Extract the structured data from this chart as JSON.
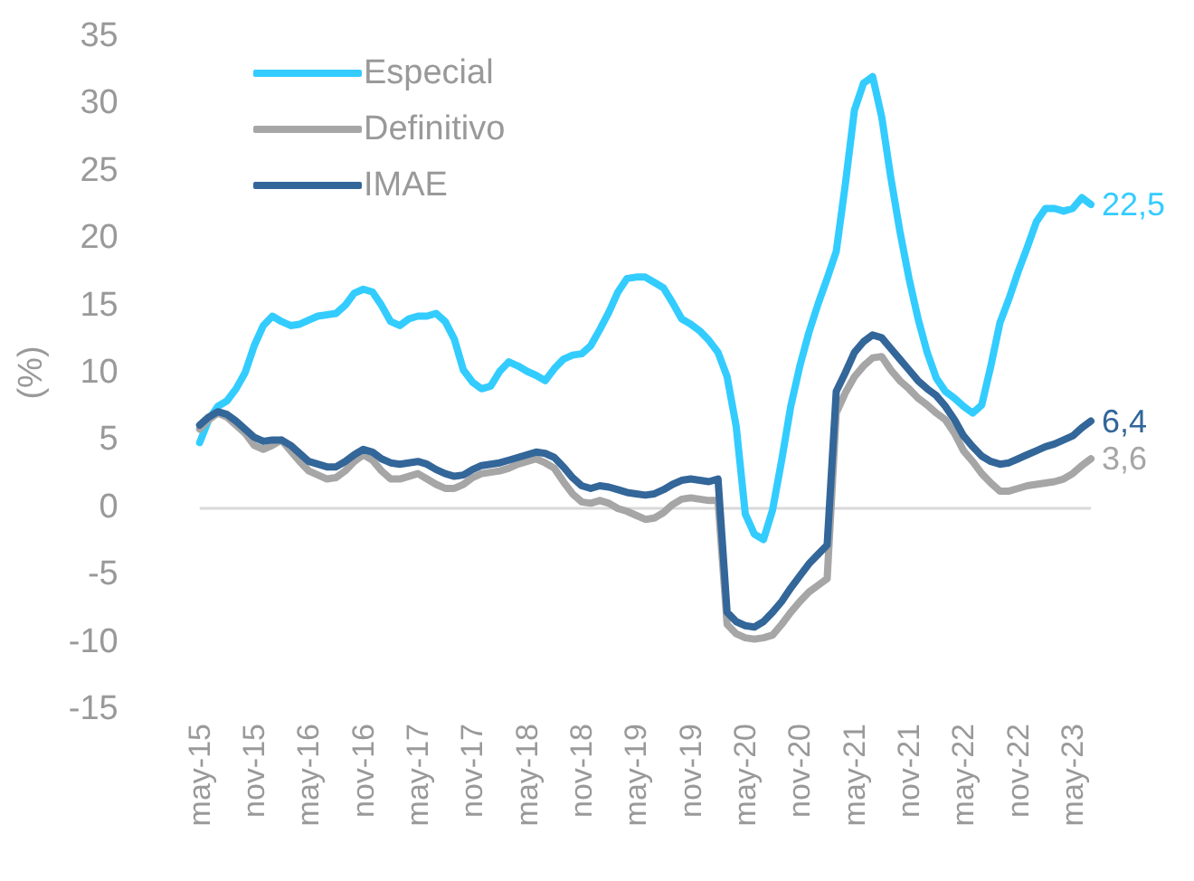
{
  "chart_data": {
    "type": "line",
    "ylabel": "(%)",
    "categories": [
      "may-15",
      null,
      null,
      null,
      null,
      null,
      "nov-15",
      null,
      null,
      null,
      null,
      null,
      "may-16",
      null,
      null,
      null,
      null,
      null,
      "nov-16",
      null,
      null,
      null,
      null,
      null,
      "may-17",
      null,
      null,
      null,
      null,
      null,
      "nov-17",
      null,
      null,
      null,
      null,
      null,
      "may-18",
      null,
      null,
      null,
      null,
      null,
      "nov-18",
      null,
      null,
      null,
      null,
      null,
      "may-19",
      null,
      null,
      null,
      null,
      null,
      "nov-19",
      null,
      null,
      null,
      null,
      null,
      "may-20",
      null,
      null,
      null,
      null,
      null,
      "nov-20",
      null,
      null,
      null,
      null,
      null,
      "may-21",
      null,
      null,
      null,
      null,
      null,
      "nov-21",
      null,
      null,
      null,
      null,
      null,
      "may-22",
      null,
      null,
      null,
      null,
      null,
      "nov-22",
      null,
      null,
      null,
      null,
      null,
      "may-23",
      null,
      null
    ],
    "series": [
      {
        "name": "Especial",
        "color": "#33ccff",
        "values": [
          4.8,
          6.5,
          7.5,
          7.9,
          8.8,
          10,
          12,
          13.5,
          14.2,
          13.8,
          13.5,
          13.6,
          13.9,
          14.2,
          14.3,
          14.4,
          15,
          15.9,
          16.2,
          16,
          15,
          13.8,
          13.5,
          14,
          14.2,
          14.2,
          14.4,
          13.8,
          12.5,
          10.2,
          9.3,
          8.8,
          9,
          10.1,
          10.8,
          10.5,
          10.1,
          9.8,
          9.4,
          10.3,
          11,
          11.3,
          11.4,
          12,
          13.2,
          14.5,
          16,
          17,
          17.1,
          17.1,
          16.7,
          16.3,
          15.2,
          14,
          13.6,
          13.1,
          12.4,
          11.5,
          9.7,
          6,
          -0.5,
          -2,
          -2.4,
          -0.2,
          3.5,
          7.5,
          10.5,
          13,
          15.1,
          17,
          19,
          24,
          29.5,
          31.5,
          32,
          29,
          24.5,
          20.5,
          17,
          14,
          11.5,
          9.6,
          8.6,
          8.1,
          7.5,
          7,
          7.6,
          10.5,
          13.7,
          15.5,
          17.5,
          19.3,
          21.2,
          22.2,
          22.2,
          22,
          22.2,
          23,
          22.5
        ],
        "value_labels": [
          null,
          null,
          null,
          null,
          null,
          null,
          null,
          null,
          null,
          null,
          null,
          null,
          null,
          null,
          null,
          null,
          null,
          null,
          null,
          null,
          null,
          null,
          null,
          null,
          null,
          null,
          null,
          null,
          null,
          null,
          null,
          null,
          null,
          null,
          null,
          null,
          null,
          null,
          null,
          null,
          null,
          null,
          null,
          null,
          null,
          null,
          null,
          null,
          null,
          null,
          null,
          null,
          null,
          null,
          null,
          null,
          null,
          null,
          null,
          null,
          null,
          null,
          null,
          null,
          null,
          null,
          null,
          null,
          null,
          null,
          null,
          null,
          null,
          null,
          null,
          null,
          null,
          null,
          null,
          null,
          null,
          null,
          null,
          null,
          null,
          null,
          null,
          null,
          null,
          null,
          null,
          null,
          null,
          null,
          null,
          null,
          null,
          null,
          "22,5"
        ]
      },
      {
        "name": "Definitivo",
        "color": "#a6a6a6",
        "values": [
          5.8,
          6.5,
          7,
          6.7,
          6.1,
          5.5,
          4.6,
          4.3,
          4.6,
          5,
          4.2,
          3.4,
          2.7,
          2.4,
          2.1,
          2.2,
          2.7,
          3.4,
          3.9,
          3.5,
          2.7,
          2.1,
          2.1,
          2.3,
          2.5,
          2.1,
          1.7,
          1.4,
          1.4,
          1.7,
          2.2,
          2.5,
          2.6,
          2.7,
          2.9,
          3.2,
          3.4,
          3.6,
          3.3,
          2.9,
          1.9,
          1,
          0.4,
          0.3,
          0.5,
          0.3,
          -0.1,
          -0.3,
          -0.6,
          -0.9,
          -0.8,
          -0.4,
          0.2,
          0.6,
          0.7,
          0.6,
          0.5,
          0.5,
          -8.7,
          -9.4,
          -9.7,
          -9.8,
          -9.7,
          -9.5,
          -8.7,
          -7.8,
          -7,
          -6.3,
          -5.8,
          -5.3,
          7,
          8.5,
          9.7,
          10.5,
          11.1,
          11.2,
          10.2,
          9.4,
          8.8,
          8.1,
          7.6,
          7,
          6.5,
          5.5,
          4.2,
          3.4,
          2.5,
          1.8,
          1.2,
          1.2,
          1.4,
          1.6,
          1.7,
          1.8,
          1.9,
          2.1,
          2.5,
          3.1,
          3.6
        ],
        "value_labels": [
          null,
          null,
          null,
          null,
          null,
          null,
          null,
          null,
          null,
          null,
          null,
          null,
          null,
          null,
          null,
          null,
          null,
          null,
          null,
          null,
          null,
          null,
          null,
          null,
          null,
          null,
          null,
          null,
          null,
          null,
          null,
          null,
          null,
          null,
          null,
          null,
          null,
          null,
          null,
          null,
          null,
          null,
          null,
          null,
          null,
          null,
          null,
          null,
          null,
          null,
          null,
          null,
          null,
          null,
          null,
          null,
          null,
          null,
          null,
          null,
          null,
          null,
          null,
          null,
          null,
          null,
          null,
          null,
          null,
          null,
          null,
          null,
          null,
          null,
          null,
          null,
          null,
          null,
          null,
          null,
          null,
          null,
          null,
          null,
          null,
          null,
          null,
          null,
          null,
          null,
          null,
          null,
          null,
          null,
          null,
          null,
          null,
          null,
          "3,6"
        ]
      },
      {
        "name": "IMAE",
        "color": "#336699",
        "values": [
          6.1,
          6.7,
          7.1,
          6.9,
          6.4,
          5.8,
          5.2,
          4.9,
          5,
          5,
          4.6,
          4,
          3.4,
          3.2,
          3,
          3,
          3.4,
          3.9,
          4.3,
          4.1,
          3.6,
          3.3,
          3.2,
          3.3,
          3.4,
          3.2,
          2.8,
          2.5,
          2.3,
          2.4,
          2.8,
          3.1,
          3.2,
          3.3,
          3.5,
          3.7,
          3.9,
          4.1,
          4,
          3.7,
          3,
          2.2,
          1.6,
          1.4,
          1.6,
          1.5,
          1.3,
          1.1,
          1,
          0.9,
          1,
          1.3,
          1.7,
          2,
          2.1,
          2,
          1.9,
          2.1,
          -7.8,
          -8.5,
          -8.8,
          -8.9,
          -8.5,
          -7.8,
          -7,
          -6,
          -5.1,
          -4.2,
          -3.5,
          -2.8,
          8.6,
          10,
          11.5,
          12.3,
          12.8,
          12.6,
          11.8,
          11,
          10.2,
          9.4,
          8.8,
          8.3,
          7.5,
          6.5,
          5.3,
          4.5,
          3.8,
          3.4,
          3.2,
          3.3,
          3.6,
          3.9,
          4.2,
          4.5,
          4.7,
          5,
          5.3,
          5.9,
          6.4
        ],
        "value_labels": [
          null,
          null,
          null,
          null,
          null,
          null,
          null,
          null,
          null,
          null,
          null,
          null,
          null,
          null,
          null,
          null,
          null,
          null,
          null,
          null,
          null,
          null,
          null,
          null,
          null,
          null,
          null,
          null,
          null,
          null,
          null,
          null,
          null,
          null,
          null,
          null,
          null,
          null,
          null,
          null,
          null,
          null,
          null,
          null,
          null,
          null,
          null,
          null,
          null,
          null,
          null,
          null,
          null,
          null,
          null,
          null,
          null,
          null,
          null,
          null,
          null,
          null,
          null,
          null,
          null,
          null,
          null,
          null,
          null,
          null,
          null,
          null,
          null,
          null,
          null,
          null,
          null,
          null,
          null,
          null,
          null,
          null,
          null,
          null,
          null,
          null,
          null,
          null,
          null,
          null,
          null,
          null,
          null,
          null,
          null,
          null,
          null,
          null,
          "6,4"
        ]
      }
    ],
    "ylim": [
      -15,
      35
    ],
    "yticks": [
      -15,
      -10,
      -5,
      0,
      5,
      10,
      15,
      20,
      25,
      30,
      35
    ],
    "ref_lines": [
      {
        "axis": "y",
        "value": 0,
        "color": "#d9d9d9"
      }
    ],
    "grid": false,
    "legend": "top left",
    "marker": "none",
    "line_style": "solid"
  }
}
